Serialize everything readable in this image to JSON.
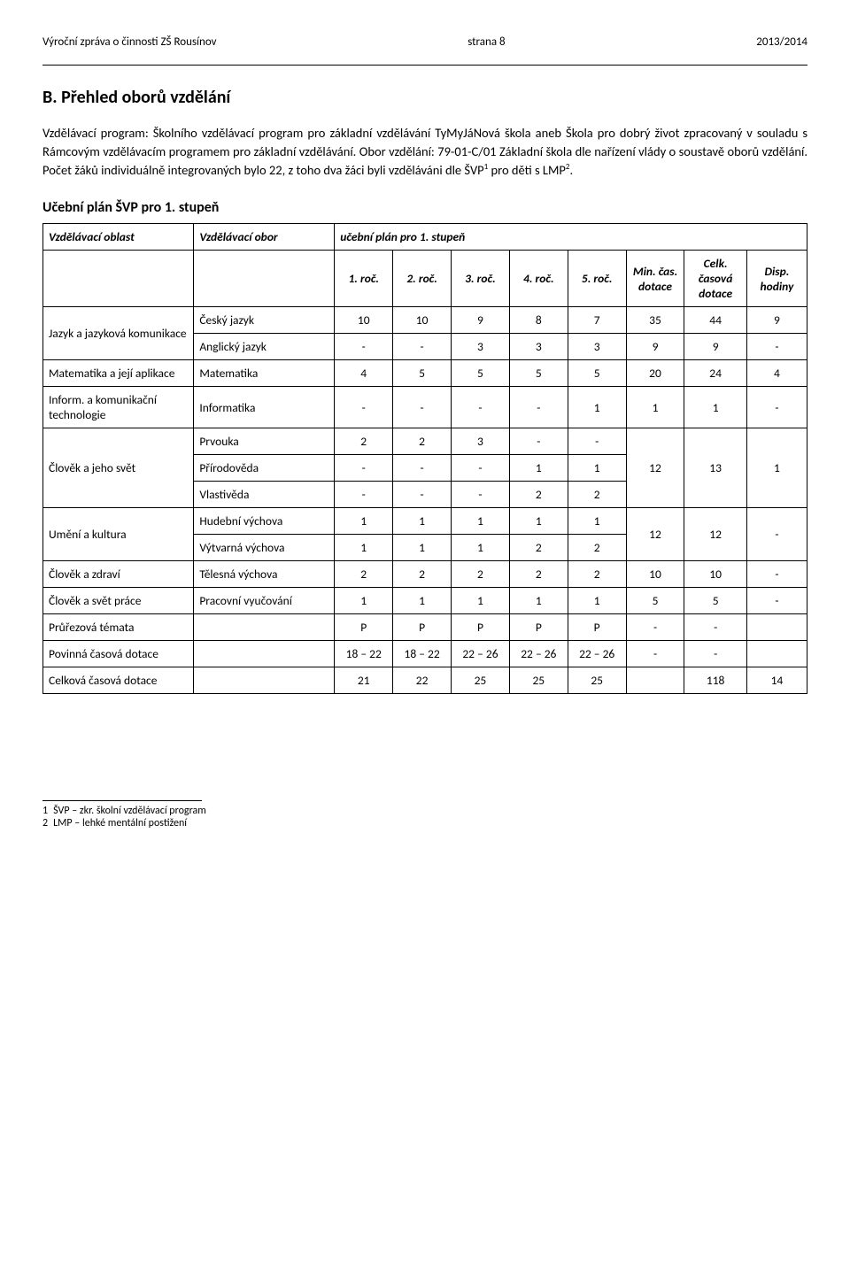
{
  "header": {
    "left": "Výroční zpráva o činnosti ZŠ Rousínov",
    "center": "strana 8",
    "right": "2013/2014"
  },
  "title": "B. Přehled oborů vzdělání",
  "paragraph": "Vzdělávací program: Školního vzdělávací program pro základní vzdělávání TyMyJáNová škola aneb Škola pro dobrý život zpracovaný v souladu s Rámcovým vzdělávacím programem pro základní vzdělávání. Obor vzdělání: 79-01-C/01 Základní škola dle nařízení vlády o soustavě oborů vzdělání. Počet žáků individuálně integrovaných bylo 22, z toho dva žáci byli vzděláváni dle ŠVP",
  "paragraph_tail": " pro děti s LMP",
  "paragraph_end": ".",
  "sup1": "1",
  "sup2": "2",
  "subheading": "Učební plán ŠVP pro 1. stupeň",
  "thead": {
    "oblast": "Vzdělávací oblast",
    "obor": "Vzdělávací obor",
    "ucplan": "učební plán pro 1. stupeň",
    "roc1": "1. roč.",
    "roc2": "2. roč.",
    "roc3": "3. roč.",
    "roc4": "4. roč.",
    "roc5": "5. roč.",
    "min": "Min. čas. dotace",
    "celk": "Celk. časová dotace",
    "disp": "Disp. hodiny"
  },
  "rows": {
    "jazyk_oblast": "Jazyk a jazyková komunikace",
    "cesky": {
      "label": "Český jazyk",
      "r": [
        "10",
        "10",
        "9",
        "8",
        "7",
        "35",
        "44",
        "9"
      ]
    },
    "anglicky": {
      "label": "Anglický jazyk",
      "r": [
        "-",
        "-",
        "3",
        "3",
        "3",
        "9",
        "9",
        "-"
      ]
    },
    "mat_oblast": "Matematika a její aplikace",
    "matematika": {
      "label": "Matematika",
      "r": [
        "4",
        "5",
        "5",
        "5",
        "5",
        "20",
        "24",
        "4"
      ]
    },
    "inf_oblast": "Inform. a komunikační technologie",
    "informatika": {
      "label": "Informatika",
      "r": [
        "-",
        "-",
        "-",
        "-",
        "1",
        "1",
        "1",
        "-"
      ]
    },
    "clovek_svet_oblast": "Člověk a jeho svět",
    "prvouka": {
      "label": "Prvouka",
      "r": [
        "2",
        "2",
        "3",
        "-",
        "-"
      ]
    },
    "prirodoveda": {
      "label": "Přírodověda",
      "r": [
        "-",
        "-",
        "-",
        "1",
        "1"
      ],
      "min": "12",
      "celk": "13",
      "disp": "1"
    },
    "vlastiveda": {
      "label": "Vlastivěda",
      "r": [
        "-",
        "-",
        "-",
        "2",
        "2"
      ]
    },
    "umeni_oblast": "Umění a kultura",
    "hudebni": {
      "label": "Hudební výchova",
      "r": [
        "1",
        "1",
        "1",
        "1",
        "1"
      ]
    },
    "vytvarna": {
      "label": "Výtvarná výchova",
      "r": [
        "1",
        "1",
        "1",
        "2",
        "2"
      ],
      "min": "12",
      "celk": "12",
      "disp": "-"
    },
    "zdravi_oblast": "Člověk a zdraví",
    "telesna": {
      "label": "Tělesná výchova",
      "r": [
        "2",
        "2",
        "2",
        "2",
        "2",
        "10",
        "10",
        "-"
      ]
    },
    "prace_oblast": "Člověk a svět práce",
    "pracovni": {
      "label": "Pracovní vyučování",
      "r": [
        "1",
        "1",
        "1",
        "1",
        "1",
        "5",
        "5",
        "-"
      ]
    },
    "prurez_oblast": "Průřezová témata",
    "prurez": {
      "r": [
        "P",
        "P",
        "P",
        "P",
        "P",
        "-",
        "-"
      ]
    },
    "povinna": {
      "label": "Povinná časová dotace",
      "r": [
        "18 – 22",
        "18 – 22",
        "22 – 26",
        "22 – 26",
        "22 – 26",
        "-",
        "-"
      ]
    },
    "celkova": {
      "label": "Celková časová dotace",
      "r": [
        "21",
        "22",
        "25",
        "25",
        "25",
        "",
        "118",
        "14"
      ]
    }
  },
  "footnotes": {
    "n1_num": "1",
    "n1_text": "ŠVP – zkr. školní vzdělávací program",
    "n2_num": "2",
    "n2_text": "LMP – lehké mentální postižení"
  }
}
